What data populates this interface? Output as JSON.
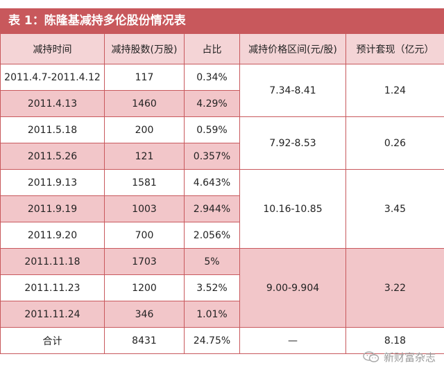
{
  "title": "表 1：陈隆基减持多伦股份情况表",
  "headers": [
    "减持时间",
    "减持股数(万股)",
    "占比",
    "减持价格区间(元/股)",
    "预计套现（亿元）"
  ],
  "rows": [
    {
      "date": "2011.4.7-2011.4.12",
      "shares": "117",
      "pct": "0.34%"
    },
    {
      "date": "2011.4.13",
      "shares": "1460",
      "pct": "4.29%"
    },
    {
      "date": "2011.5.18",
      "shares": "200",
      "pct": "0.59%"
    },
    {
      "date": "2011.5.26",
      "shares": "121",
      "pct": "0.357%"
    },
    {
      "date": "2011.9.13",
      "shares": "1581",
      "pct": "4.643%"
    },
    {
      "date": "2011.9.19",
      "shares": "1003",
      "pct": "2.944%"
    },
    {
      "date": "2011.9.20",
      "shares": "700",
      "pct": "2.056%"
    },
    {
      "date": "2011.11.18",
      "shares": "1703",
      "pct": "5%"
    },
    {
      "date": "2011.11.23",
      "shares": "1200",
      "pct": "3.52%"
    },
    {
      "date": "2011.11.24",
      "shares": "346",
      "pct": "1.01%"
    }
  ],
  "groups": [
    {
      "price_range": "7.34-8.41",
      "cash": "1.24"
    },
    {
      "price_range": "7.92-8.53",
      "cash": "0.26"
    },
    {
      "price_range": "10.16-10.85",
      "cash": "3.45"
    },
    {
      "price_range": "9.00-9.904",
      "cash": "3.22"
    }
  ],
  "total": {
    "label": "合计",
    "shares": "8431",
    "pct": "24.75%",
    "price_range": "—",
    "cash": "8.18"
  },
  "watermark": {
    "text": "新财富杂志",
    "icon": "wechat-icon"
  },
  "colors": {
    "accent": "#c8585c",
    "pink_row": "#f2c6c9",
    "header_bg": "#f4d4d6"
  }
}
